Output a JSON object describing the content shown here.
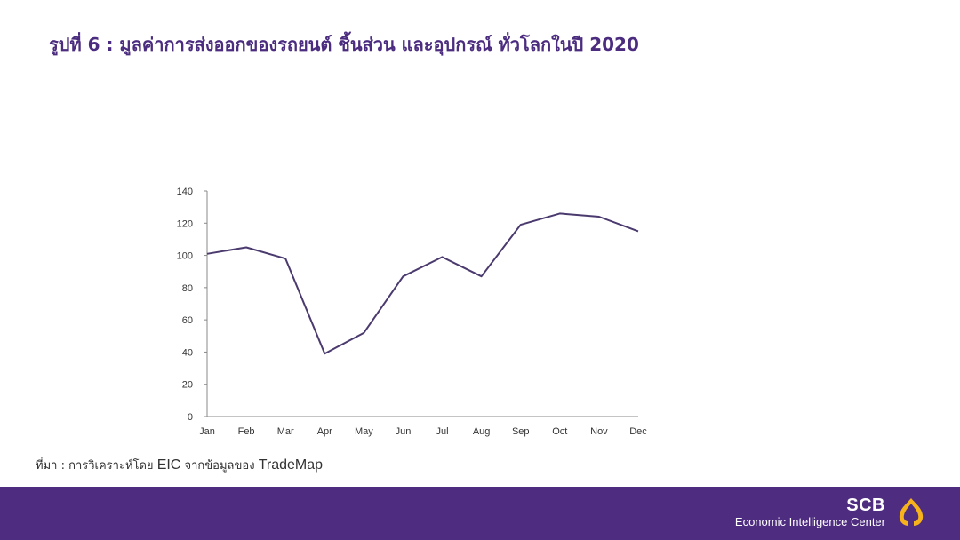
{
  "header": {
    "title": "รูปที่ 6 : มูลค่าการส่งออกของรถยนต์ ชิ้นส่วน และอุปกรณ์ ทั่วโลกในปี 2020"
  },
  "chart_data": {
    "type": "line",
    "title": "",
    "xlabel": "",
    "ylabel": "",
    "categories": [
      "Jan",
      "Feb",
      "Mar",
      "Apr",
      "May",
      "Jun",
      "Jul",
      "Aug",
      "Sep",
      "Oct",
      "Nov",
      "Dec"
    ],
    "series": [
      {
        "values": [
          101,
          105,
          98,
          39,
          52,
          87,
          99,
          87,
          119,
          126,
          124,
          115
        ]
      }
    ],
    "yticks": [
      "0",
      "20",
      "40",
      "60",
      "80",
      "100",
      "120",
      "140"
    ],
    "ylim": [
      0,
      140
    ],
    "grid": false,
    "legend": "none",
    "line_color": "#4b3a6e"
  },
  "source": {
    "prefix": "ที่มา : การวิเคราะห์โดย ",
    "org": "EIC",
    "middle": " จากข้อมูลของ ",
    "dataset": "TradeMap"
  },
  "footer": {
    "brand": "SCB",
    "subtitle": "Economic Intelligence Center",
    "logo_icon": "scb-palace-logo-icon",
    "background_color": "#4e2d80",
    "logo_color": "#f5b21a"
  }
}
